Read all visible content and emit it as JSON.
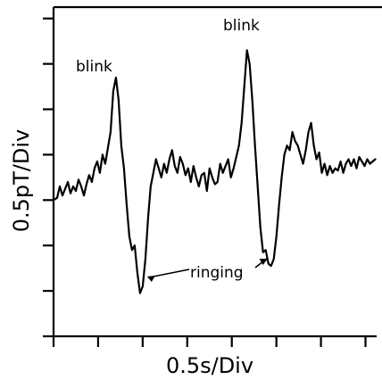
{
  "chart_data": {
    "type": "line",
    "xlabel": "0.5s/Div",
    "ylabel": "0.5pT/Div",
    "xlim": [
      0,
      7.25
    ],
    "ylim": [
      0,
      7.25
    ],
    "x_divisions": 8,
    "y_divisions": 8,
    "grid": false,
    "series": [
      {
        "x": [
          0,
          0.08,
          0.14,
          0.2,
          0.26,
          0.32,
          0.38,
          0.44,
          0.5,
          0.56,
          0.62,
          0.68,
          0.74,
          0.8,
          0.86,
          0.92,
          0.98,
          1.04,
          1.1,
          1.16,
          1.22,
          1.28,
          1.34,
          1.4,
          1.46,
          1.52,
          1.58,
          1.64,
          1.7,
          1.76,
          1.82,
          1.88,
          1.94,
          2.0,
          2.06,
          2.12,
          2.18,
          2.24,
          2.3,
          2.36,
          2.42,
          2.48,
          2.54,
          2.6,
          2.66,
          2.72,
          2.78,
          2.84,
          2.9,
          2.96,
          3.02,
          3.08,
          3.14,
          3.2,
          3.26,
          3.32,
          3.38,
          3.44,
          3.5,
          3.56,
          3.62,
          3.68,
          3.74,
          3.8,
          3.86,
          3.92,
          3.98,
          4.04,
          4.1,
          4.16,
          4.22,
          4.28,
          4.34,
          4.4,
          4.46,
          4.52,
          4.58,
          4.64,
          4.7,
          4.76,
          4.82,
          4.88,
          4.94,
          5.0,
          5.06,
          5.12,
          5.18,
          5.24,
          5.3,
          5.36,
          5.42,
          5.48,
          5.54,
          5.6,
          5.66,
          5.72,
          5.78,
          5.84,
          5.9,
          5.96,
          6.02,
          6.08,
          6.14,
          6.2,
          6.26,
          6.32,
          6.38,
          6.44,
          6.5,
          6.56,
          6.62,
          6.68,
          6.74,
          6.8,
          6.86,
          6.92,
          6.98,
          7.04,
          7.1,
          7.16,
          7.22
        ],
        "y": [
          3.0,
          3.05,
          3.3,
          3.1,
          3.25,
          3.4,
          3.15,
          3.3,
          3.2,
          3.45,
          3.3,
          3.1,
          3.35,
          3.55,
          3.4,
          3.7,
          3.85,
          3.6,
          4.0,
          3.8,
          4.15,
          4.5,
          5.4,
          5.7,
          5.2,
          4.2,
          3.7,
          2.9,
          2.2,
          1.9,
          2.0,
          1.4,
          0.95,
          1.1,
          1.7,
          2.6,
          3.3,
          3.6,
          3.9,
          3.7,
          3.5,
          3.8,
          3.6,
          3.9,
          4.1,
          3.75,
          3.6,
          3.95,
          3.8,
          3.55,
          3.7,
          3.4,
          3.75,
          3.5,
          3.3,
          3.55,
          3.6,
          3.2,
          3.7,
          3.5,
          3.35,
          3.4,
          3.8,
          3.6,
          3.75,
          3.9,
          3.5,
          3.7,
          3.95,
          4.2,
          4.7,
          5.5,
          6.3,
          6.0,
          5.2,
          4.2,
          3.3,
          2.4,
          1.85,
          1.9,
          1.6,
          1.55,
          1.7,
          2.2,
          2.9,
          3.5,
          4.0,
          4.2,
          4.1,
          4.5,
          4.3,
          4.2,
          4.0,
          3.8,
          4.1,
          4.5,
          4.7,
          4.2,
          3.9,
          4.05,
          3.6,
          3.8,
          3.55,
          3.75,
          3.6,
          3.7,
          3.65,
          3.85,
          3.6,
          3.8,
          3.9,
          3.75,
          3.9,
          3.7,
          3.95,
          3.85,
          3.75,
          3.9,
          3.8,
          3.85,
          3.9
        ]
      }
    ],
    "annotations": [
      {
        "text": "blink",
        "x": 1.45,
        "y": 5.7
      },
      {
        "text": "blink",
        "x": 4.3,
        "y": 6.3
      },
      {
        "text": "ringing",
        "x": 2.7,
        "y": 1.2
      }
    ]
  }
}
